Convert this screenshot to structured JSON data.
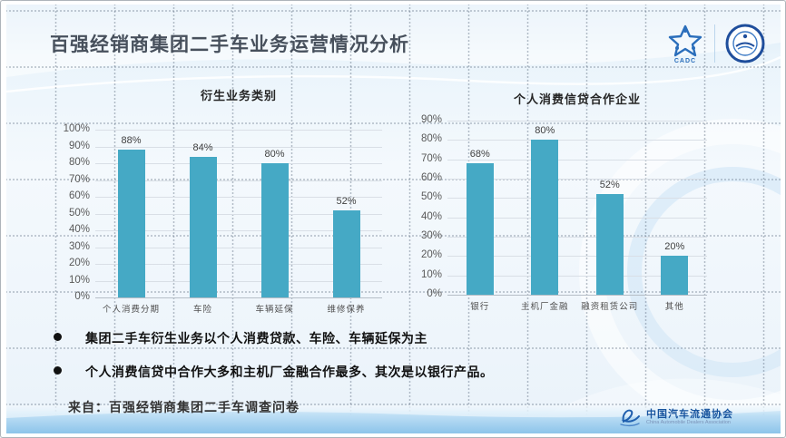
{
  "slide": {
    "title": "百强经销商集团二手车业务运营情况分析",
    "bullets": [
      "集团二手车衍生业务以个人消费贷款、车险、车辆延保为主",
      "个人消费信贷中合作大多和主机厂金融合作最多、其次是以银行产品。"
    ],
    "source": "来自：百强经销商集团二手车调查问卷"
  },
  "logos": {
    "cadc_label": "CADC",
    "association_cn": "中国汽车流通协会",
    "association_en": "China Automobile Dealers Association"
  },
  "colors": {
    "bar": "#45A9C5",
    "title_text": "#47505C",
    "accent_blue": "#1F5FAE",
    "band_blue": "#8CC4EA"
  },
  "chart_data": [
    {
      "type": "bar",
      "title": "衍生业务类别",
      "categories": [
        "个人消费分期",
        "车险",
        "车辆延保",
        "维修保养"
      ],
      "values": [
        88,
        84,
        80,
        52
      ],
      "unit": "%",
      "xlabel": "",
      "ylabel": "",
      "ylim": [
        0,
        100
      ],
      "ytick_step": 10,
      "grid": true,
      "legend": "none",
      "bar_color": "#45A9C5"
    },
    {
      "type": "bar",
      "title": "个人消费信贷合作企业",
      "categories": [
        "银行",
        "主机厂金融",
        "融资租赁公司",
        "其他"
      ],
      "values": [
        68,
        80,
        52,
        20
      ],
      "unit": "%",
      "xlabel": "",
      "ylabel": "",
      "ylim": [
        0,
        90
      ],
      "ytick_step": 10,
      "grid": true,
      "legend": "none",
      "bar_color": "#45A9C5"
    }
  ]
}
